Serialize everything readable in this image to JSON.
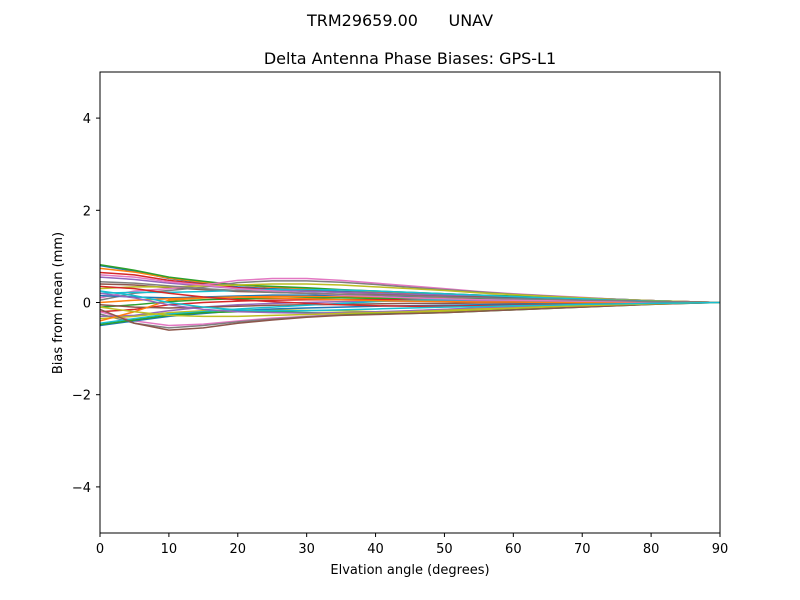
{
  "chart_data": {
    "type": "line",
    "suptitle": "TRM29659.00      UNAV",
    "title": "Delta Antenna Phase Biases: GPS-L1",
    "xlabel": "Elvation angle (degrees)",
    "ylabel": "Bias from mean (mm)",
    "xlim": [
      0,
      90
    ],
    "ylim": [
      -5,
      5
    ],
    "xticks": [
      0,
      10,
      20,
      30,
      40,
      50,
      60,
      70,
      80,
      90
    ],
    "yticks": [
      -4,
      -2,
      0,
      2,
      4
    ],
    "ytick_labels": [
      "−4",
      "−2",
      "0",
      "2",
      "4"
    ],
    "grid": false,
    "legend": "none",
    "x": [
      0,
      5,
      10,
      15,
      20,
      25,
      30,
      35,
      40,
      45,
      50,
      55,
      60,
      65,
      70,
      75,
      80,
      85,
      90
    ],
    "series": [
      {
        "color": "#1f77b4",
        "values": [
          0.8,
          0.68,
          0.52,
          0.42,
          0.34,
          0.3,
          0.27,
          0.24,
          0.22,
          0.2,
          0.18,
          0.15,
          0.13,
          0.11,
          0.09,
          0.07,
          0.04,
          0.02,
          0.0
        ]
      },
      {
        "color": "#ff7f0e",
        "values": [
          0.74,
          0.66,
          0.53,
          0.44,
          0.38,
          0.33,
          0.3,
          0.27,
          0.24,
          0.21,
          0.19,
          0.16,
          0.14,
          0.11,
          0.09,
          0.06,
          0.04,
          0.02,
          0.0
        ]
      },
      {
        "color": "#2ca02c",
        "values": [
          0.82,
          0.7,
          0.55,
          0.46,
          0.38,
          0.35,
          0.32,
          0.28,
          0.25,
          0.22,
          0.19,
          0.16,
          0.14,
          0.12,
          0.1,
          0.07,
          0.04,
          0.02,
          0.0
        ]
      },
      {
        "color": "#d62728",
        "values": [
          0.65,
          0.6,
          0.48,
          0.4,
          0.32,
          0.28,
          0.25,
          0.22,
          0.2,
          0.18,
          0.16,
          0.14,
          0.12,
          0.1,
          0.08,
          0.06,
          0.04,
          0.02,
          0.0
        ]
      },
      {
        "color": "#9467bd",
        "values": [
          0.55,
          0.5,
          0.42,
          0.36,
          0.3,
          0.27,
          0.24,
          0.22,
          0.2,
          0.18,
          0.16,
          0.14,
          0.12,
          0.1,
          0.08,
          0.06,
          0.04,
          0.02,
          0.0
        ]
      },
      {
        "color": "#8c564b",
        "values": [
          0.4,
          0.38,
          0.32,
          0.28,
          0.24,
          0.22,
          0.2,
          0.18,
          0.17,
          0.15,
          0.13,
          0.12,
          0.1,
          0.08,
          0.07,
          0.05,
          0.03,
          0.01,
          0.0
        ]
      },
      {
        "color": "#e377c2",
        "values": [
          0.1,
          0.25,
          0.3,
          0.38,
          0.48,
          0.52,
          0.52,
          0.48,
          0.42,
          0.36,
          0.3,
          0.24,
          0.19,
          0.15,
          0.11,
          0.07,
          0.04,
          0.02,
          0.0
        ]
      },
      {
        "color": "#7f7f7f",
        "values": [
          0.05,
          0.2,
          0.26,
          0.33,
          0.43,
          0.47,
          0.47,
          0.44,
          0.39,
          0.33,
          0.28,
          0.23,
          0.18,
          0.14,
          0.1,
          0.07,
          0.04,
          0.02,
          0.0
        ]
      },
      {
        "color": "#bcbd22",
        "values": [
          0.3,
          0.34,
          0.34,
          0.36,
          0.38,
          0.4,
          0.4,
          0.38,
          0.34,
          0.3,
          0.26,
          0.21,
          0.17,
          0.13,
          0.1,
          0.06,
          0.04,
          0.02,
          0.0
        ]
      },
      {
        "color": "#17becf",
        "values": [
          0.2,
          0.22,
          0.22,
          0.24,
          0.26,
          0.28,
          0.28,
          0.27,
          0.25,
          0.22,
          0.19,
          0.16,
          0.13,
          0.1,
          0.08,
          0.05,
          0.03,
          0.01,
          0.0
        ]
      },
      {
        "color": "#1f77b4",
        "values": [
          0.15,
          0.12,
          0.1,
          0.12,
          0.14,
          0.16,
          0.16,
          0.15,
          0.14,
          0.13,
          0.12,
          0.1,
          0.09,
          0.07,
          0.05,
          0.04,
          0.02,
          0.01,
          0.0
        ]
      },
      {
        "color": "#ff7f0e",
        "values": [
          0.0,
          0.05,
          0.08,
          0.1,
          0.12,
          0.13,
          0.13,
          0.12,
          0.11,
          0.1,
          0.09,
          0.08,
          0.07,
          0.06,
          0.04,
          0.03,
          0.02,
          0.01,
          0.0
        ]
      },
      {
        "color": "#2ca02c",
        "values": [
          -0.1,
          -0.05,
          0.02,
          0.06,
          0.08,
          0.09,
          0.1,
          0.1,
          0.09,
          0.09,
          0.08,
          0.07,
          0.06,
          0.05,
          0.04,
          0.03,
          0.02,
          0.01,
          0.0
        ]
      },
      {
        "color": "#d62728",
        "values": [
          -0.2,
          -0.15,
          -0.05,
          0.0,
          0.03,
          0.05,
          0.06,
          0.06,
          0.06,
          0.06,
          0.05,
          0.05,
          0.04,
          0.04,
          0.03,
          0.02,
          0.01,
          0.01,
          0.0
        ]
      },
      {
        "color": "#9467bd",
        "values": [
          -0.3,
          -0.28,
          -0.18,
          -0.1,
          -0.05,
          -0.02,
          0.0,
          0.02,
          0.03,
          0.03,
          0.03,
          0.03,
          0.03,
          0.02,
          0.02,
          0.01,
          0.01,
          0.0,
          0.0
        ]
      },
      {
        "color": "#8c564b",
        "values": [
          -0.05,
          -0.1,
          -0.12,
          -0.1,
          -0.08,
          -0.06,
          -0.05,
          -0.04,
          -0.03,
          -0.02,
          -0.02,
          -0.01,
          -0.01,
          -0.01,
          -0.01,
          0.0,
          0.0,
          0.0,
          0.0
        ]
      },
      {
        "color": "#e377c2",
        "values": [
          -0.2,
          -0.4,
          -0.5,
          -0.47,
          -0.4,
          -0.34,
          -0.3,
          -0.26,
          -0.22,
          -0.18,
          -0.15,
          -0.12,
          -0.1,
          -0.08,
          -0.06,
          -0.04,
          -0.02,
          -0.01,
          0.0
        ]
      },
      {
        "color": "#7f7f7f",
        "values": [
          -0.25,
          -0.45,
          -0.55,
          -0.5,
          -0.42,
          -0.36,
          -0.31,
          -0.27,
          -0.24,
          -0.2,
          -0.17,
          -0.14,
          -0.11,
          -0.09,
          -0.07,
          -0.05,
          -0.03,
          -0.01,
          0.0
        ]
      },
      {
        "color": "#bcbd22",
        "values": [
          -0.35,
          -0.3,
          -0.22,
          -0.18,
          -0.16,
          -0.16,
          -0.17,
          -0.18,
          -0.2,
          -0.21,
          -0.19,
          -0.17,
          -0.14,
          -0.11,
          -0.08,
          -0.05,
          -0.03,
          -0.01,
          0.0
        ]
      },
      {
        "color": "#17becf",
        "values": [
          -0.45,
          -0.35,
          -0.25,
          -0.2,
          -0.14,
          -0.1,
          -0.06,
          -0.02,
          0.02,
          0.05,
          0.06,
          0.06,
          0.05,
          0.04,
          0.03,
          0.02,
          0.01,
          0.0,
          0.0
        ]
      },
      {
        "color": "#1f77b4",
        "values": [
          -0.5,
          -0.4,
          -0.3,
          -0.24,
          -0.18,
          -0.14,
          -0.12,
          -0.1,
          -0.08,
          -0.07,
          -0.06,
          -0.05,
          -0.04,
          -0.03,
          -0.02,
          -0.02,
          -0.01,
          0.0,
          0.0
        ]
      },
      {
        "color": "#ff7f0e",
        "values": [
          -0.4,
          -0.2,
          0.05,
          0.1,
          0.12,
          0.1,
          0.08,
          0.06,
          0.04,
          0.03,
          0.02,
          0.01,
          0.01,
          0.0,
          0.0,
          0.0,
          0.0,
          0.0,
          0.0
        ]
      },
      {
        "color": "#2ca02c",
        "values": [
          -0.48,
          -0.38,
          -0.28,
          -0.22,
          -0.2,
          -0.2,
          -0.22,
          -0.24,
          -0.25,
          -0.24,
          -0.22,
          -0.19,
          -0.16,
          -0.13,
          -0.1,
          -0.07,
          -0.04,
          -0.02,
          0.0
        ]
      },
      {
        "color": "#d62728",
        "values": [
          0.35,
          0.3,
          0.2,
          0.12,
          0.06,
          0.02,
          -0.02,
          -0.05,
          -0.07,
          -0.08,
          -0.08,
          -0.07,
          -0.06,
          -0.05,
          -0.04,
          -0.03,
          -0.02,
          -0.01,
          0.0
        ]
      },
      {
        "color": "#9467bd",
        "values": [
          0.2,
          0.1,
          -0.05,
          -0.15,
          -0.2,
          -0.22,
          -0.23,
          -0.22,
          -0.2,
          -0.18,
          -0.15,
          -0.12,
          -0.1,
          -0.08,
          -0.06,
          -0.04,
          -0.02,
          -0.01,
          0.0
        ]
      },
      {
        "color": "#8c564b",
        "values": [
          -0.15,
          -0.45,
          -0.6,
          -0.55,
          -0.45,
          -0.38,
          -0.32,
          -0.28,
          -0.26,
          -0.24,
          -0.22,
          -0.19,
          -0.16,
          -0.13,
          -0.1,
          -0.07,
          -0.04,
          -0.02,
          0.0
        ]
      },
      {
        "color": "#e377c2",
        "values": [
          0.6,
          0.55,
          0.45,
          0.38,
          0.3,
          0.25,
          0.2,
          0.16,
          0.13,
          0.1,
          0.08,
          0.06,
          0.05,
          0.04,
          0.03,
          0.02,
          0.01,
          0.01,
          0.0
        ]
      },
      {
        "color": "#7f7f7f",
        "values": [
          0.45,
          0.42,
          0.36,
          0.3,
          0.26,
          0.22,
          0.2,
          0.18,
          0.16,
          0.14,
          0.12,
          0.1,
          0.08,
          0.07,
          0.05,
          0.04,
          0.02,
          0.01,
          0.0
        ]
      },
      {
        "color": "#bcbd22",
        "values": [
          -0.1,
          -0.2,
          -0.28,
          -0.3,
          -0.3,
          -0.28,
          -0.26,
          -0.24,
          -0.22,
          -0.2,
          -0.17,
          -0.14,
          -0.12,
          -0.09,
          -0.07,
          -0.05,
          -0.03,
          -0.01,
          0.0
        ]
      },
      {
        "color": "#17becf",
        "values": [
          0.25,
          0.15,
          0.0,
          -0.1,
          -0.16,
          -0.18,
          -0.18,
          -0.16,
          -0.14,
          -0.12,
          -0.1,
          -0.09,
          -0.07,
          -0.06,
          -0.04,
          -0.03,
          -0.02,
          -0.01,
          0.0
        ]
      }
    ]
  }
}
